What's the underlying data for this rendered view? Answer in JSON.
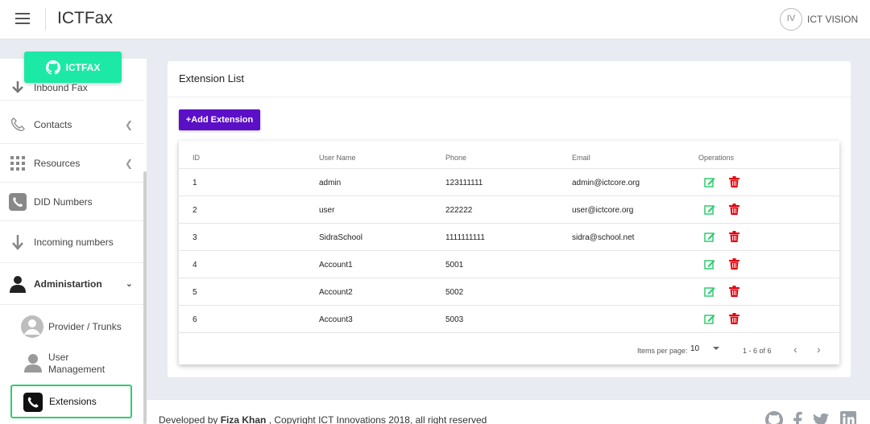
{
  "app": {
    "title": "ICTFax",
    "brand_initials": "IV",
    "brand_name": "ICT VISION"
  },
  "sidebar": {
    "logo_button": "ICTFAX",
    "items": [
      {
        "label": "Inbound Fax",
        "icon": "arrow-down-icon"
      },
      {
        "label": "Contacts",
        "icon": "phone-icon",
        "chevron": "<"
      },
      {
        "label": "Resources",
        "icon": "grid-icon",
        "chevron": "<"
      },
      {
        "label": "DID Numbers",
        "icon": "phone-square-icon"
      },
      {
        "label": "Incoming numbers",
        "icon": "arrow-down-icon"
      },
      {
        "label": "Administartion",
        "icon": "user-icon",
        "chevron": "v"
      }
    ],
    "subitems": [
      {
        "label": "Provider / Trunks",
        "icon": "user-circle-icon"
      },
      {
        "label": "User",
        "label2": "Management",
        "icon": "user-icon"
      },
      {
        "label": "Extensions",
        "icon": "phone-square-icon",
        "active": true
      }
    ]
  },
  "main": {
    "card_title": "Extension List",
    "add_button": "+Add Extension",
    "table": {
      "headers": [
        "ID",
        "User Name",
        "Phone",
        "Email",
        "Operations"
      ],
      "rows": [
        [
          "1",
          "admin",
          "123111111",
          "admin@ictcore.org"
        ],
        [
          "2",
          "user",
          "222222",
          "user@ictcore.org"
        ],
        [
          "3",
          "SidraSchool",
          "1111111111",
          "sidra@school.net"
        ],
        [
          "4",
          "Account1",
          "5001",
          ""
        ],
        [
          "5",
          "Account2",
          "5002",
          ""
        ],
        [
          "6",
          "Account3",
          "5003",
          ""
        ]
      ]
    },
    "pager": {
      "items_per_page_label": "Items per page:",
      "items_per_page": "10",
      "range": "1 - 6 of 6",
      "prev": "‹",
      "next": "›"
    }
  },
  "footer": {
    "prefix": "Developed by ",
    "author": "Fiza Khan",
    "suffix": " , Copyright ICT Innovations 2018, all right reserved",
    "social": [
      "github-icon",
      "facebook-icon",
      "twitter-icon",
      "linkedin-icon"
    ]
  },
  "colors": {
    "accent_green": "#1de9a6",
    "add_button": "#5b0fc7",
    "edit": "#2ecc71",
    "delete": "#e3000f"
  }
}
